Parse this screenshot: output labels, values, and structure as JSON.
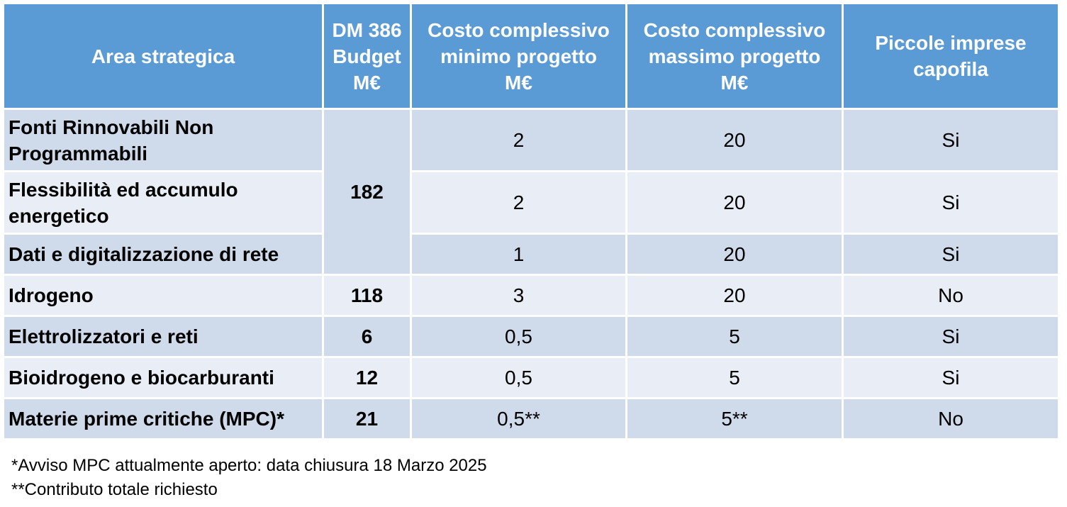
{
  "table": {
    "headers": {
      "area": "Area strategica",
      "budget": [
        "DM 386",
        "Budget",
        "M€"
      ],
      "min_cost": [
        "Costo complessivo",
        "minimo progetto",
        "M€"
      ],
      "max_cost": [
        "Costo complessivo",
        "massimo progetto",
        "M€"
      ],
      "small_business": [
        "Piccole imprese",
        "capofila"
      ]
    },
    "rows": [
      {
        "area": [
          "Fonti Rinnovabili Non",
          "Programmabili"
        ],
        "budget": "182",
        "min": "2",
        "max": "20",
        "small": "Si"
      },
      {
        "area": [
          "Flessibilità ed accumulo",
          "energetico"
        ],
        "budget": "",
        "min": "2",
        "max": "20",
        "small": "Si"
      },
      {
        "area": [
          "Dati e digitalizzazione di rete"
        ],
        "budget": "",
        "min": "1",
        "max": "20",
        "small": "Si"
      },
      {
        "area": [
          "Idrogeno"
        ],
        "budget": "118",
        "min": "3",
        "max": "20",
        "small": "No"
      },
      {
        "area": [
          "Elettrolizzatori e reti"
        ],
        "budget": "6",
        "min": "0,5",
        "max": "5",
        "small": "Si"
      },
      {
        "area": [
          "Bioidrogeno e biocarburanti"
        ],
        "budget": "12",
        "min": "0,5",
        "max": "5",
        "small": "Si"
      },
      {
        "area": [
          "Materie prime critiche (MPC)*"
        ],
        "budget": "21",
        "min": "0,5**",
        "max": "5**",
        "small": "No"
      }
    ]
  },
  "footnotes": {
    "note1": "*Avviso MPC attualmente aperto: data chiusura 18 Marzo 2025",
    "note2": "**Contributo totale richiesto"
  },
  "colors": {
    "header_bg": "#5b9bd5",
    "row_dark": "#cfdaeb",
    "row_light": "#e9edf6"
  }
}
